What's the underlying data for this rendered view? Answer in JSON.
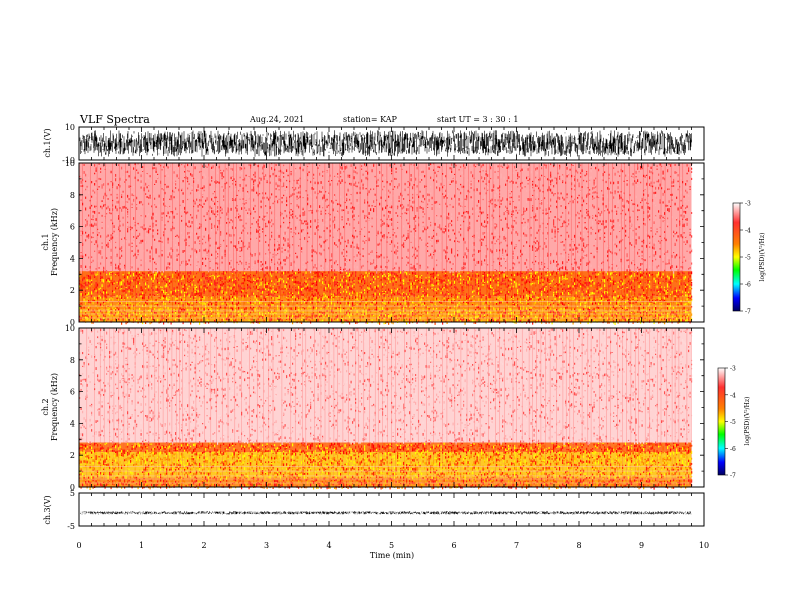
{
  "header": {
    "title": "VLF Spectra",
    "date": "Aug.24, 2021",
    "station": "station= KAP",
    "start": "start UT =  3 : 30 : 1"
  },
  "colorbar": {
    "label": "log(PSD)(V²/Hz)",
    "ticks": [
      "-3",
      "-4",
      "-5",
      "-6",
      "-7"
    ],
    "colors": [
      "#ffffff",
      "#ff0000",
      "#ffa500",
      "#ffff00",
      "#00ff00",
      "#00ffff",
      "#0000ff",
      "#000080"
    ]
  },
  "chart_data": [
    {
      "type": "line",
      "name": "ch.1 waveform",
      "ylabel": "ch.1(V)",
      "ylim": [
        -10,
        10
      ],
      "yticks": [
        "10",
        "-10"
      ],
      "xlim": [
        0,
        10
      ],
      "trace_color": "#000000",
      "envelope": {
        "max": 8,
        "min": -8,
        "end_time_min": 9.8
      }
    },
    {
      "type": "heatmap",
      "name": "ch.1 spectrogram",
      "ylabel": "ch.1 Frequency (kHz)",
      "ylim": [
        0,
        10
      ],
      "yticks": [
        "0",
        "2",
        "4",
        "6",
        "8",
        "10"
      ],
      "xlim": [
        0,
        10
      ],
      "data_end_time_min": 9.8,
      "bands": [
        {
          "from_khz": 0,
          "to_khz": 0.8,
          "level": "orange-yellow"
        },
        {
          "from_khz": 0.8,
          "to_khz": 3.2,
          "level": "red-yellow"
        },
        {
          "from_khz": 3.2,
          "to_khz": 10,
          "level": "red"
        }
      ]
    },
    {
      "type": "heatmap",
      "name": "ch.2 spectrogram",
      "ylabel": "ch.2 Frequency (kHz)",
      "ylim": [
        0,
        10
      ],
      "yticks": [
        "0",
        "2",
        "4",
        "6",
        "8",
        "10"
      ],
      "xlim": [
        0,
        10
      ],
      "data_end_time_min": 9.8,
      "bands": [
        {
          "from_khz": 0,
          "to_khz": 0.6,
          "level": "red-orange"
        },
        {
          "from_khz": 0.6,
          "to_khz": 2.8,
          "level": "yellow"
        },
        {
          "from_khz": 2.8,
          "to_khz": 10,
          "level": "light-red"
        }
      ]
    },
    {
      "type": "line",
      "name": "ch.3 waveform",
      "ylabel": "ch.3(V)",
      "ylim": [
        -5,
        5
      ],
      "yticks": [
        "5",
        "-5"
      ],
      "xlim": [
        0,
        10
      ],
      "xlabel": "Time (min)",
      "xticks": [
        "0",
        "1",
        "2",
        "3",
        "4",
        "5",
        "6",
        "7",
        "8",
        "9",
        "10"
      ],
      "trace_color": "#000000",
      "envelope": {
        "max": -0.5,
        "min": -1.5,
        "end_time_min": 9.8
      }
    }
  ]
}
